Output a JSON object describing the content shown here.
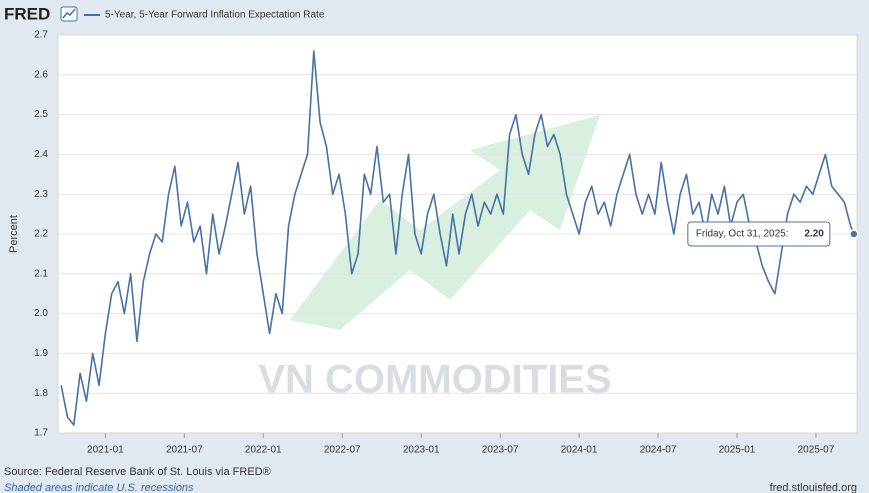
{
  "chart_data": {
    "type": "line",
    "logo": "FRED",
    "ylabel": "Percent",
    "source": "Source: Federal Reserve Bank of St. Louis via FRED®",
    "note": "Shaded areas indicate U.S. recessions",
    "credit": "fred.stlouisfed.org",
    "watermark": "VN COMMODITIES",
    "tooltip": {
      "text": "Friday, Oct 31, 2025:",
      "value_label": "2.20"
    },
    "grid": true,
    "xlim": [
      2020.7,
      2025.76
    ],
    "xticks": [
      {
        "value": 2021.0,
        "label": "2021-01"
      },
      {
        "value": 2021.5,
        "label": "2021-07"
      },
      {
        "value": 2022.0,
        "label": "2022-01"
      },
      {
        "value": 2022.5,
        "label": "2022-07"
      },
      {
        "value": 2023.0,
        "label": "2023-01"
      },
      {
        "value": 2023.5,
        "label": "2023-07"
      },
      {
        "value": 2024.0,
        "label": "2024-01"
      },
      {
        "value": 2024.5,
        "label": "2024-07"
      },
      {
        "value": 2025.0,
        "label": "2025-01"
      },
      {
        "value": 2025.5,
        "label": "2025-07"
      }
    ],
    "ylim": [
      1.7,
      2.7
    ],
    "yticks": [
      1.7,
      1.8,
      1.9,
      {
        "value": 2,
        "label": "2.0"
      },
      2.1,
      2.2,
      2.3,
      2.4,
      2.5,
      2.6,
      2.7
    ],
    "x": [
      2020.72,
      2020.76,
      2020.8,
      2020.84,
      2020.88,
      2020.92,
      2020.96,
      2021.0,
      2021.04,
      2021.08,
      2021.12,
      2021.16,
      2021.2,
      2021.24,
      2021.28,
      2021.32,
      2021.36,
      2021.4,
      2021.44,
      2021.48,
      2021.52,
      2021.56,
      2021.6,
      2021.64,
      2021.68,
      2021.72,
      2021.76,
      2021.8,
      2021.84,
      2021.88,
      2021.92,
      2021.96,
      2022.0,
      2022.04,
      2022.08,
      2022.12,
      2022.16,
      2022.2,
      2022.24,
      2022.28,
      2022.32,
      2022.36,
      2022.4,
      2022.44,
      2022.48,
      2022.52,
      2022.56,
      2022.6,
      2022.64,
      2022.68,
      2022.72,
      2022.76,
      2022.8,
      2022.84,
      2022.88,
      2022.92,
      2022.96,
      2023.0,
      2023.04,
      2023.08,
      2023.12,
      2023.16,
      2023.2,
      2023.24,
      2023.28,
      2023.32,
      2023.36,
      2023.4,
      2023.44,
      2023.48,
      2023.52,
      2023.56,
      2023.6,
      2023.64,
      2023.68,
      2023.72,
      2023.76,
      2023.8,
      2023.84,
      2023.88,
      2023.92,
      2023.96,
      2024.0,
      2024.04,
      2024.08,
      2024.12,
      2024.16,
      2024.2,
      2024.24,
      2024.28,
      2024.32,
      2024.36,
      2024.4,
      2024.44,
      2024.48,
      2024.52,
      2024.56,
      2024.6,
      2024.64,
      2024.68,
      2024.72,
      2024.76,
      2024.8,
      2024.84,
      2024.88,
      2024.92,
      2024.96,
      2025.0,
      2025.04,
      2025.08,
      2025.12,
      2025.16,
      2025.2,
      2025.24,
      2025.28,
      2025.32,
      2025.36,
      2025.4,
      2025.44,
      2025.48,
      2025.52,
      2025.56,
      2025.6,
      2025.64,
      2025.68,
      2025.72,
      2025.74
    ],
    "series": [
      {
        "name": "5-Year, 5-Year Forward Inflation Expectation Rate",
        "color": "#4572a7",
        "values": [
          1.82,
          1.74,
          1.72,
          1.85,
          1.78,
          1.9,
          1.82,
          1.95,
          2.05,
          2.08,
          2.0,
          2.1,
          1.93,
          2.08,
          2.15,
          2.2,
          2.18,
          2.3,
          2.37,
          2.22,
          2.28,
          2.18,
          2.22,
          2.1,
          2.25,
          2.15,
          2.22,
          2.3,
          2.38,
          2.25,
          2.32,
          2.15,
          2.05,
          1.95,
          2.05,
          2.0,
          2.22,
          2.3,
          2.35,
          2.4,
          2.66,
          2.48,
          2.42,
          2.3,
          2.35,
          2.25,
          2.1,
          2.15,
          2.35,
          2.3,
          2.42,
          2.28,
          2.3,
          2.15,
          2.3,
          2.4,
          2.2,
          2.15,
          2.25,
          2.3,
          2.2,
          2.12,
          2.25,
          2.15,
          2.25,
          2.3,
          2.22,
          2.28,
          2.25,
          2.3,
          2.25,
          2.45,
          2.5,
          2.4,
          2.35,
          2.45,
          2.5,
          2.42,
          2.45,
          2.4,
          2.3,
          2.25,
          2.2,
          2.28,
          2.32,
          2.25,
          2.28,
          2.22,
          2.3,
          2.35,
          2.4,
          2.3,
          2.25,
          2.3,
          2.25,
          2.38,
          2.28,
          2.2,
          2.3,
          2.35,
          2.25,
          2.28,
          2.2,
          2.3,
          2.25,
          2.32,
          2.22,
          2.28,
          2.3,
          2.22,
          2.18,
          2.12,
          2.08,
          2.05,
          2.15,
          2.25,
          2.3,
          2.28,
          2.32,
          2.3,
          2.35,
          2.4,
          2.32,
          2.3,
          2.28,
          2.22,
          2.2
        ]
      }
    ]
  }
}
